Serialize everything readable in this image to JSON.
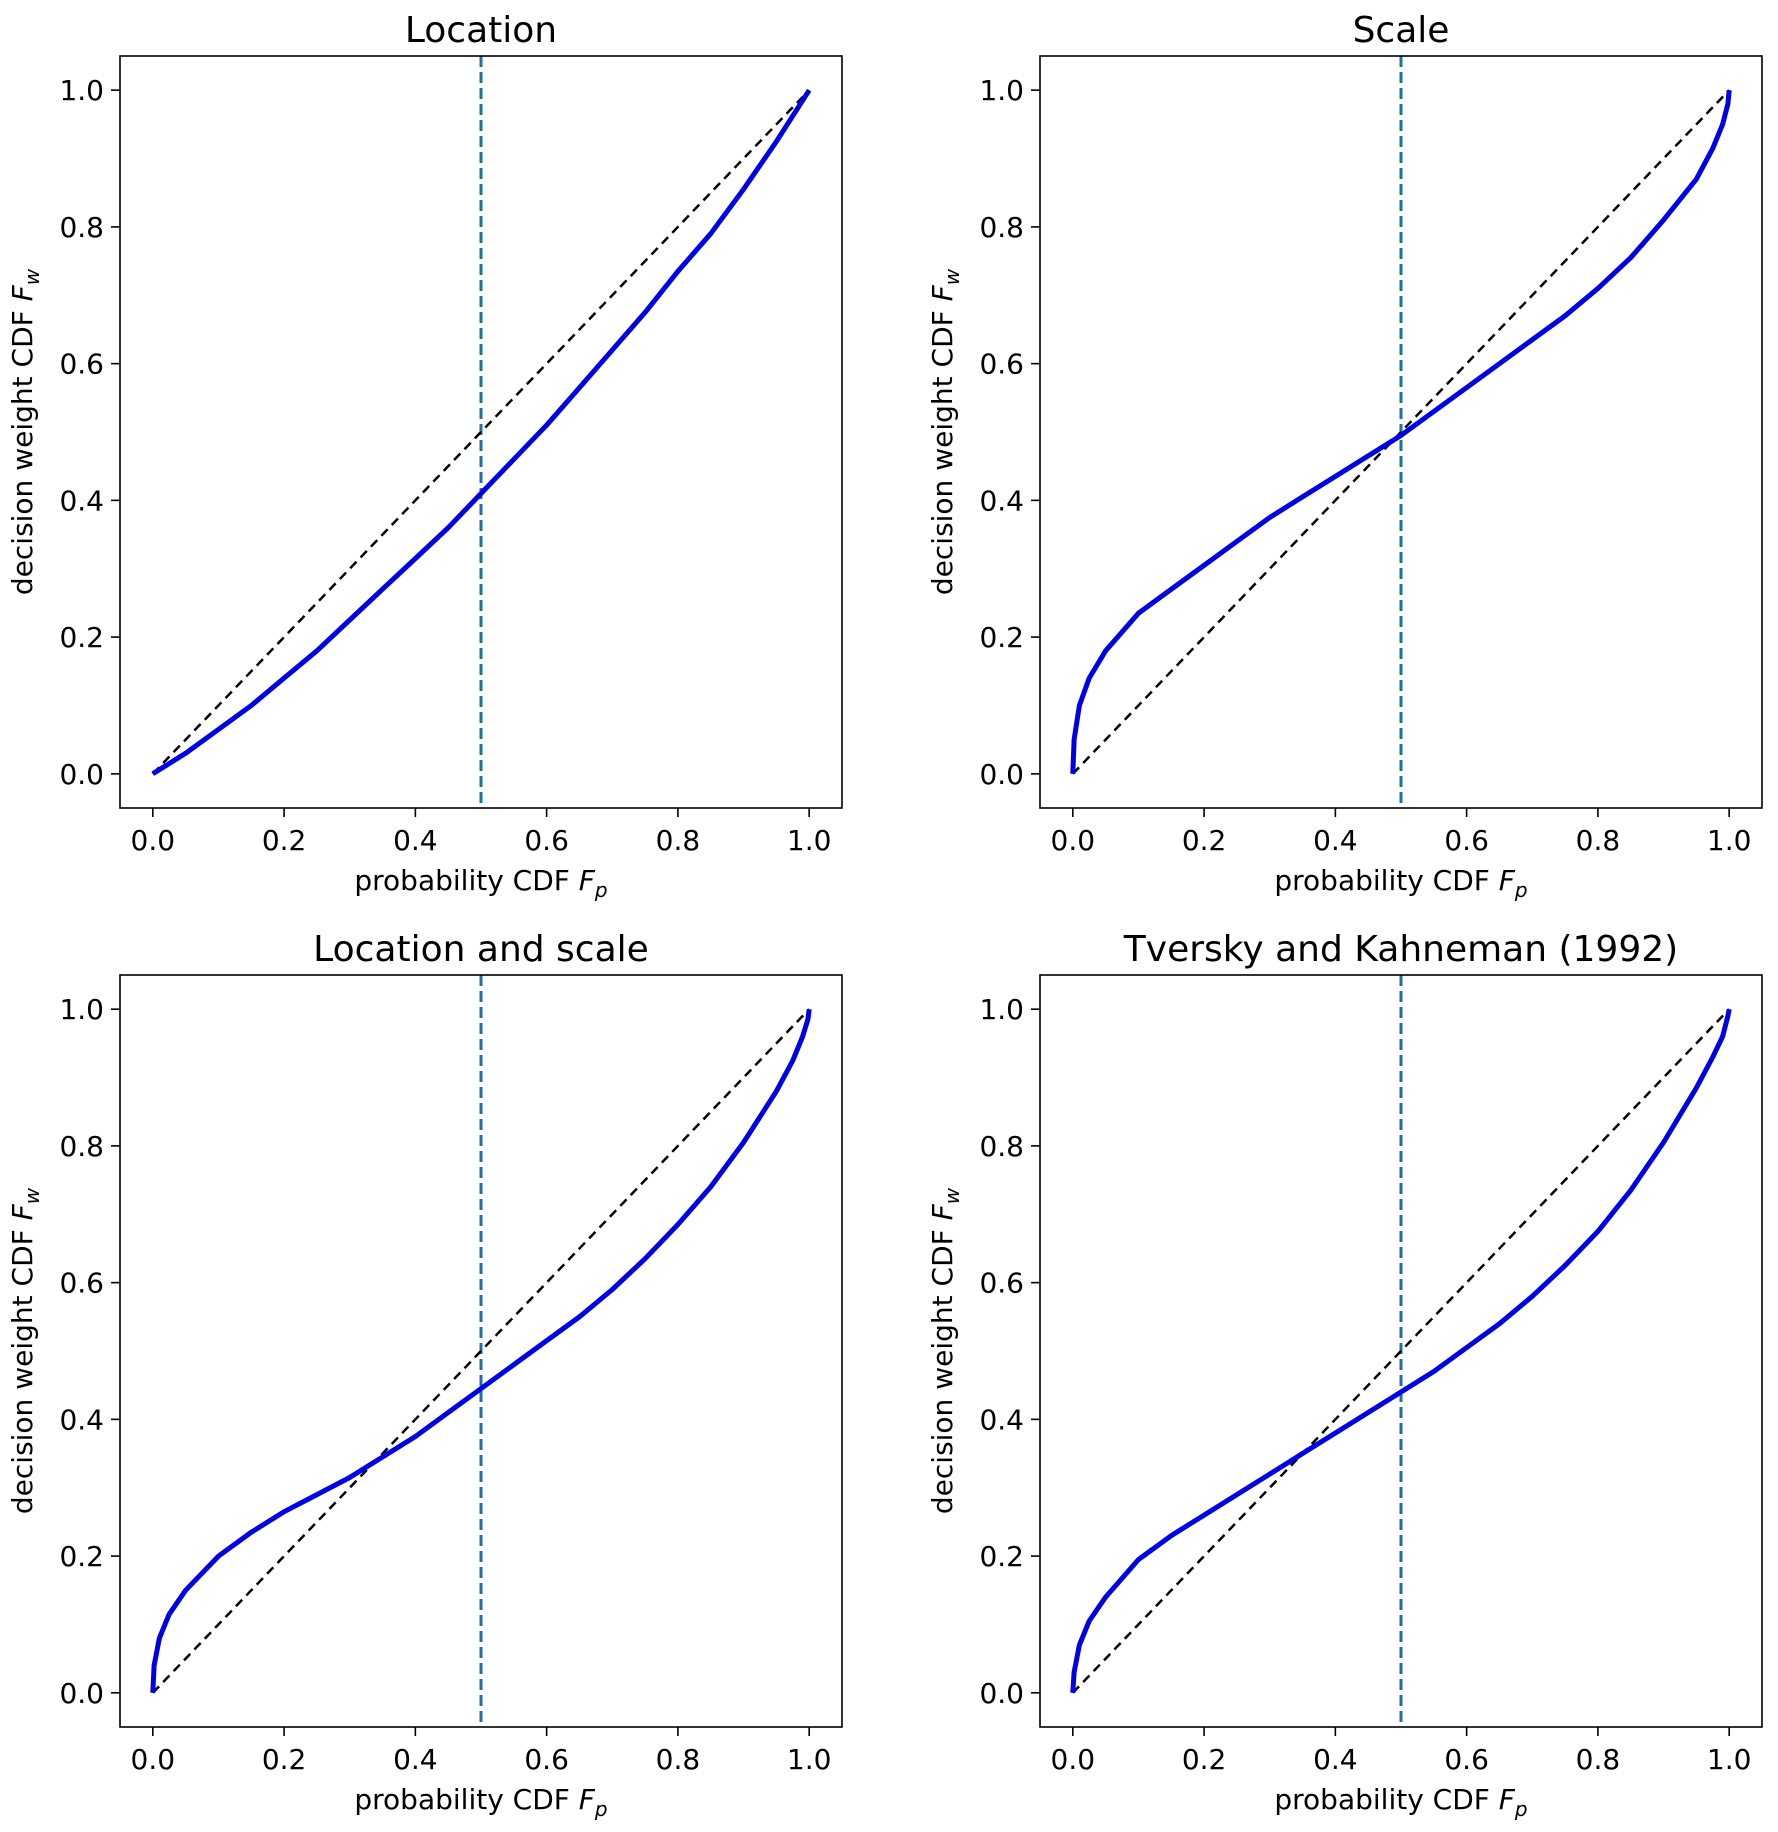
{
  "figure": {
    "background": "#ffffff"
  },
  "style": {
    "curve_color": "#0000e6",
    "diagonal_color": "#000000",
    "vline_color": "#1f6fa8",
    "axis_color": "#000000"
  },
  "chart_data": [
    {
      "type": "line",
      "title": "Location",
      "xlabel": "probability CDF F_p",
      "ylabel": "decision weight CDF F_w",
      "xlim": [
        -0.05,
        1.05
      ],
      "ylim": [
        -0.05,
        1.05
      ],
      "xticks": [
        "0.0",
        "0.2",
        "0.4",
        "0.6",
        "0.8",
        "1.0"
      ],
      "yticks": [
        "0.0",
        "0.2",
        "0.4",
        "0.6",
        "0.8",
        "1.0"
      ],
      "grid": false,
      "reference_lines": {
        "diagonal": [
          [
            0,
            0
          ],
          [
            1,
            1
          ]
        ],
        "vertical_x": 0.5
      },
      "series": [
        {
          "x": [
            0,
            0.05,
            0.1,
            0.15,
            0.2,
            0.25,
            0.3,
            0.35,
            0.4,
            0.45,
            0.5,
            0.55,
            0.6,
            0.65,
            0.7,
            0.75,
            0.8,
            0.85,
            0.9,
            0.95,
            1.0
          ],
          "y": [
            0,
            0.03,
            0.065,
            0.1,
            0.14,
            0.18,
            0.225,
            0.27,
            0.315,
            0.36,
            0.41,
            0.46,
            0.51,
            0.565,
            0.62,
            0.675,
            0.735,
            0.79,
            0.855,
            0.925,
            1.0
          ]
        }
      ]
    },
    {
      "type": "line",
      "title": "Scale",
      "xlabel": "probability CDF F_p",
      "ylabel": "decision weight CDF F_w",
      "xlim": [
        -0.05,
        1.05
      ],
      "ylim": [
        -0.05,
        1.05
      ],
      "xticks": [
        "0.0",
        "0.2",
        "0.4",
        "0.6",
        "0.8",
        "1.0"
      ],
      "yticks": [
        "0.0",
        "0.2",
        "0.4",
        "0.6",
        "0.8",
        "1.0"
      ],
      "grid": false,
      "reference_lines": {
        "diagonal": [
          [
            0,
            0
          ],
          [
            1,
            1
          ]
        ],
        "vertical_x": 0.5
      },
      "series": [
        {
          "x": [
            0,
            0.002,
            0.01,
            0.025,
            0.05,
            0.1,
            0.15,
            0.2,
            0.25,
            0.3,
            0.35,
            0.4,
            0.45,
            0.5,
            0.55,
            0.6,
            0.65,
            0.7,
            0.75,
            0.8,
            0.85,
            0.9,
            0.95,
            0.975,
            0.99,
            0.998,
            1.0
          ],
          "y": [
            0,
            0.05,
            0.1,
            0.14,
            0.18,
            0.235,
            0.27,
            0.305,
            0.34,
            0.375,
            0.405,
            0.435,
            0.465,
            0.495,
            0.53,
            0.565,
            0.6,
            0.635,
            0.67,
            0.71,
            0.755,
            0.81,
            0.87,
            0.915,
            0.95,
            0.98,
            1.0
          ]
        }
      ]
    },
    {
      "type": "line",
      "title": "Location and scale",
      "xlabel": "probability CDF F_p",
      "ylabel": "decision weight CDF F_w",
      "xlim": [
        -0.05,
        1.05
      ],
      "ylim": [
        -0.05,
        1.05
      ],
      "xticks": [
        "0.0",
        "0.2",
        "0.4",
        "0.6",
        "0.8",
        "1.0"
      ],
      "yticks": [
        "0.0",
        "0.2",
        "0.4",
        "0.6",
        "0.8",
        "1.0"
      ],
      "grid": false,
      "reference_lines": {
        "diagonal": [
          [
            0,
            0
          ],
          [
            1,
            1
          ]
        ],
        "vertical_x": 0.5
      },
      "series": [
        {
          "x": [
            0,
            0.002,
            0.01,
            0.025,
            0.05,
            0.1,
            0.15,
            0.2,
            0.25,
            0.3,
            0.35,
            0.4,
            0.45,
            0.5,
            0.55,
            0.6,
            0.65,
            0.7,
            0.75,
            0.8,
            0.85,
            0.9,
            0.95,
            0.975,
            0.99,
            0.998,
            1.0
          ],
          "y": [
            0,
            0.04,
            0.08,
            0.115,
            0.15,
            0.2,
            0.235,
            0.265,
            0.29,
            0.315,
            0.345,
            0.375,
            0.41,
            0.445,
            0.48,
            0.515,
            0.55,
            0.59,
            0.635,
            0.685,
            0.74,
            0.805,
            0.88,
            0.925,
            0.96,
            0.985,
            1.0
          ]
        }
      ]
    },
    {
      "type": "line",
      "title": "Tversky and Kahneman (1992)",
      "xlabel": "probability CDF F_p",
      "ylabel": "decision weight CDF F_w",
      "xlim": [
        -0.05,
        1.05
      ],
      "ylim": [
        -0.05,
        1.05
      ],
      "xticks": [
        "0.0",
        "0.2",
        "0.4",
        "0.6",
        "0.8",
        "1.0"
      ],
      "yticks": [
        "0.0",
        "0.2",
        "0.4",
        "0.6",
        "0.8",
        "1.0"
      ],
      "grid": false,
      "reference_lines": {
        "diagonal": [
          [
            0,
            0
          ],
          [
            1,
            1
          ]
        ],
        "vertical_x": 0.5
      },
      "series": [
        {
          "x": [
            0,
            0.002,
            0.01,
            0.025,
            0.05,
            0.1,
            0.15,
            0.2,
            0.25,
            0.3,
            0.35,
            0.4,
            0.45,
            0.5,
            0.55,
            0.6,
            0.65,
            0.7,
            0.75,
            0.8,
            0.85,
            0.9,
            0.95,
            0.975,
            0.99,
            0.998,
            1.0
          ],
          "y": [
            0,
            0.03,
            0.07,
            0.105,
            0.14,
            0.195,
            0.23,
            0.26,
            0.29,
            0.32,
            0.35,
            0.38,
            0.41,
            0.44,
            0.47,
            0.505,
            0.54,
            0.58,
            0.625,
            0.675,
            0.735,
            0.805,
            0.885,
            0.93,
            0.96,
            0.99,
            1.0
          ]
        }
      ]
    }
  ]
}
